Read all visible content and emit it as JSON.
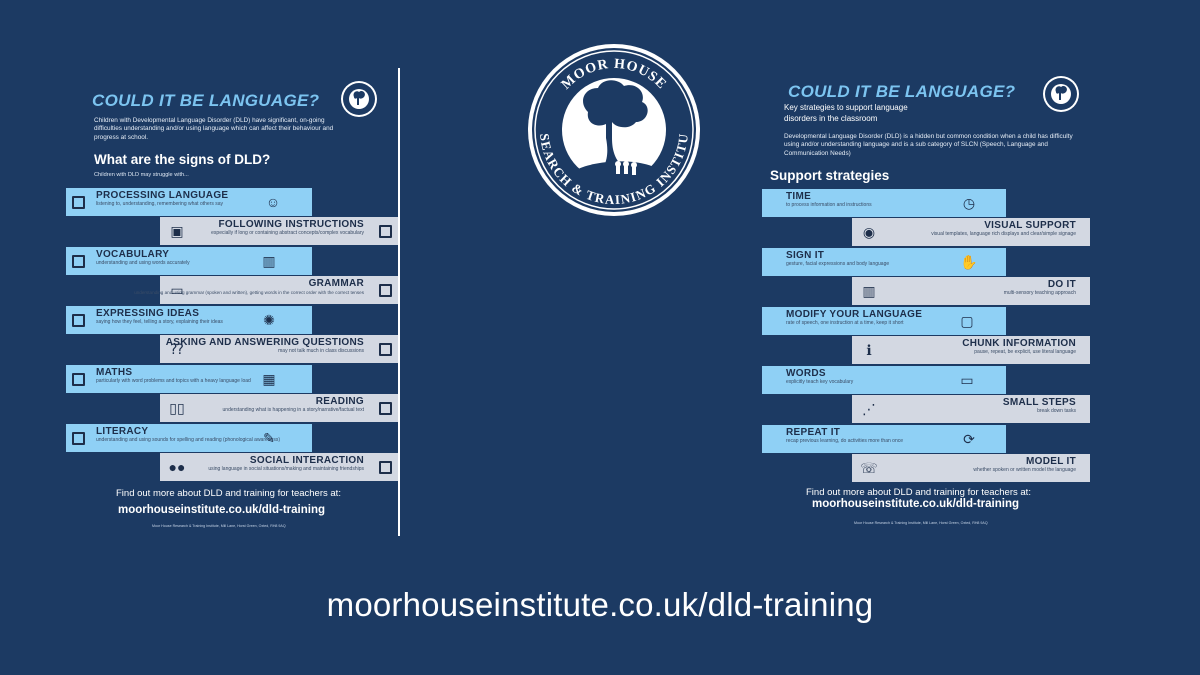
{
  "left": {
    "title": "COULD IT BE LANGUAGE?",
    "intro": "Children with Developmental Language Disorder (DLD) have significant, on-going difficulties understanding and/or using language which can affect their behaviour and progress at school.",
    "signs_heading": "What are the signs of DLD?",
    "signs_sub": "Children with DLD may struggle with...",
    "items": [
      {
        "label": "PROCESSING LANGUAGE",
        "desc": "listening to, understanding, remembering what others say",
        "icon": "brain-head-icon"
      },
      {
        "label": "FOLLOWING INSTRUCTIONS",
        "desc": "especially if long or containing abstract concepts/complex vocabulary",
        "icon": "teacher-board-icon"
      },
      {
        "label": "VOCABULARY",
        "desc": "understanding and using words accurately",
        "icon": "books-icon"
      },
      {
        "label": "GRAMMAR",
        "desc": "understanding and using grammar (spoken and written), getting words in the correct order with the correct tenses",
        "icon": "speech-bubble-icon"
      },
      {
        "label": "EXPRESSING IDEAS",
        "desc": "saying how they feel, telling a story, explaining their ideas",
        "icon": "lightbulb-icon"
      },
      {
        "label": "ASKING AND ANSWERING QUESTIONS",
        "desc": "may not talk much in class discussions",
        "icon": "question-bubble-icon"
      },
      {
        "label": "MATHS",
        "desc": "particularly with word problems and topics with a heavy language load",
        "icon": "calculator-icon"
      },
      {
        "label": "READING",
        "desc": "understanding what is happening in a story/narrative/factual text",
        "icon": "open-book-icon"
      },
      {
        "label": "LITERACY",
        "desc": "understanding and using sounds for spelling and reading (phonological awareness)",
        "icon": "writing-icon"
      },
      {
        "label": "SOCIAL INTERACTION",
        "desc": "using language in social situations/making and maintaining friendships",
        "icon": "people-icon"
      }
    ],
    "footer_line": "Find out more about DLD and training for teachers at:",
    "footer_url": "moorhouseinstitute.co.uk/dld-training",
    "footer_address": "Moor House Research & Training Institute, Mill Lane, Horst Green, Oxted, RH8 9AQ"
  },
  "right": {
    "title": "COULD IT BE LANGUAGE?",
    "subtitle": "Key strategies to support language disorders in the classroom",
    "intro": "Developmental Language Disorder (DLD) is a hidden but common condition when a child has difficulty using and/or understanding language and is a sub category of SLCN (Speech, Language and Communication Needs)",
    "strategies_heading": "Support strategies",
    "items": [
      {
        "label": "TIME",
        "desc": "to process information and instructions",
        "icon": "clock-icon"
      },
      {
        "label": "VISUAL SUPPORT",
        "desc": "visual templates, language rich displays and clear/simple signage",
        "icon": "eye-icon"
      },
      {
        "label": "SIGN IT",
        "desc": "gesture, facial expressions and body language",
        "icon": "hands-icon"
      },
      {
        "label": "DO IT",
        "desc": "multi-sensory teaching approach",
        "icon": "books-icon"
      },
      {
        "label": "MODIFY YOUR LANGUAGE",
        "desc": "rate of speech, one instruction at a time, keep it short",
        "icon": "screen-icon"
      },
      {
        "label": "CHUNK INFORMATION",
        "desc": "pause, repeat, be explicit, use literal language",
        "icon": "info-icon"
      },
      {
        "label": "WORDS",
        "desc": "explicitly teach key vocabulary",
        "icon": "chat-icon"
      },
      {
        "label": "SMALL STEPS",
        "desc": "break down tasks",
        "icon": "footsteps-icon"
      },
      {
        "label": "REPEAT IT",
        "desc": "recap previous learning, do activities more than once",
        "icon": "refresh-icon"
      },
      {
        "label": "MODEL IT",
        "desc": "whether spoken or written model the language",
        "icon": "speaker-icon"
      }
    ],
    "footer_line": "Find out more about DLD and training for teachers at:",
    "footer_url": "moorhouseinstitute.co.uk/dld-training",
    "footer_address": "Moor House Research & Training Institute, Mill Lane, Horst Green, Oxted, RH8 9AQ"
  },
  "logo": {
    "top_text": "MOOR HOUSE",
    "bottom_text": "RESEARCH & TRAINING INSTITUTE"
  },
  "bottom_url": "moorhouseinstitute.co.uk/dld-training",
  "colors": {
    "background": "#1c3a63",
    "row_blue": "#8fd0f5",
    "row_grey": "#d3d8e2",
    "title_blue": "#7cc4f0"
  }
}
